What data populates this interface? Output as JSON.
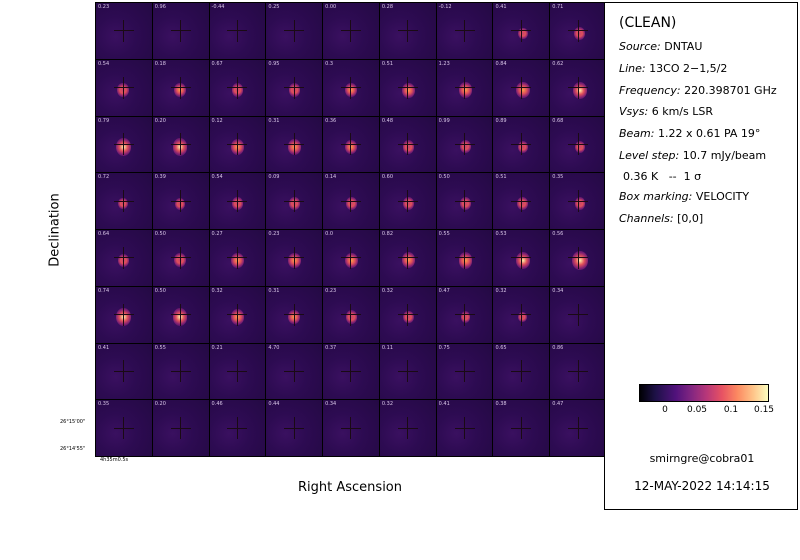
{
  "axes": {
    "dec_label": "Declination",
    "ra_label": "Right Ascension",
    "dec_ticks": [
      "26°15'00\"",
      "26°14'55\""
    ],
    "ra_tick": "4h35m0.5s"
  },
  "panel_labels": [
    "0.23",
    "0.96",
    "-0.44",
    "0.25",
    "0.00",
    "0.28",
    "-0.12",
    "0.41",
    "0.71",
    "0.54",
    "0.18",
    "0.67",
    "0.95",
    "0.3",
    "0.51",
    "1.23",
    "0.84",
    "0.62",
    "0.79",
    "0.20",
    "0.12",
    "0.31",
    "0.36",
    "0.48",
    "0.99",
    "0.89",
    "0.68",
    "0.72",
    "0.39",
    "0.54",
    "0.09",
    "0.14",
    "0.60",
    "0.50",
    "0.51",
    "0.35",
    "0.64",
    "0.50",
    "0.27",
    "0.23",
    "0.0",
    "0.82",
    "0.55",
    "0.53",
    "0.56",
    "0.74",
    "0.50",
    "0.32",
    "0.31",
    "0.23",
    "0.32",
    "0.47",
    "0.32",
    "0.34",
    "0.41",
    "0.55",
    "0.21",
    "4.70",
    "0.37",
    "0.11",
    "0.75",
    "0.65",
    "0.86",
    "0.35",
    "0.20",
    "0.46",
    "0.44",
    "0.34",
    "0.32",
    "0.41",
    "0.38",
    "0.47"
  ],
  "panel_intensity": [
    0,
    0,
    0,
    0,
    0,
    0,
    0,
    0.2,
    0.35,
    0.45,
    0.5,
    0.45,
    0.4,
    0.5,
    0.55,
    0.6,
    0.7,
    0.75,
    0.85,
    0.8,
    0.7,
    0.6,
    0.5,
    0.4,
    0.35,
    0.3,
    0.25,
    0.2,
    0.25,
    0.3,
    0.3,
    0.3,
    0.35,
    0.4,
    0.35,
    0.3,
    0.4,
    0.45,
    0.55,
    0.55,
    0.6,
    0.65,
    0.7,
    0.75,
    0.95,
    0.85,
    0.8,
    0.6,
    0.5,
    0.4,
    0.3,
    0.2,
    0.1,
    0.05,
    0,
    0,
    0,
    0,
    0,
    0,
    0,
    0,
    0,
    0,
    0,
    0,
    0,
    0,
    0,
    0,
    0,
    0
  ],
  "info": {
    "title": "(CLEAN)",
    "source_label": "Source:",
    "source_value": "DNTAU",
    "line_label": "Line:",
    "line_value": "13CO 2−1,5/2",
    "freq_label": "Frequency:",
    "freq_value": "220.398701 GHz",
    "vsys_label": "Vsys:",
    "vsys_value": "6 km/s LSR",
    "beam_label": "Beam:",
    "beam_value": "1.22 x 0.61 PA 19°",
    "level_label": "Level step:",
    "level_value": "10.7 mJy/beam",
    "kelvin_line": "0.36 K   --  1 σ",
    "box_label": "Box marking:",
    "box_value": "VELOCITY",
    "channels_label": "Channels:",
    "channels_value": "[0,0]",
    "colorbar_ticks": [
      "0",
      "0.05",
      "0.1",
      "0.15"
    ],
    "colorbar_colormap": "inferno",
    "user": "smirngre@cobra01",
    "timestamp": "12-MAY-2022 14:14:15"
  }
}
